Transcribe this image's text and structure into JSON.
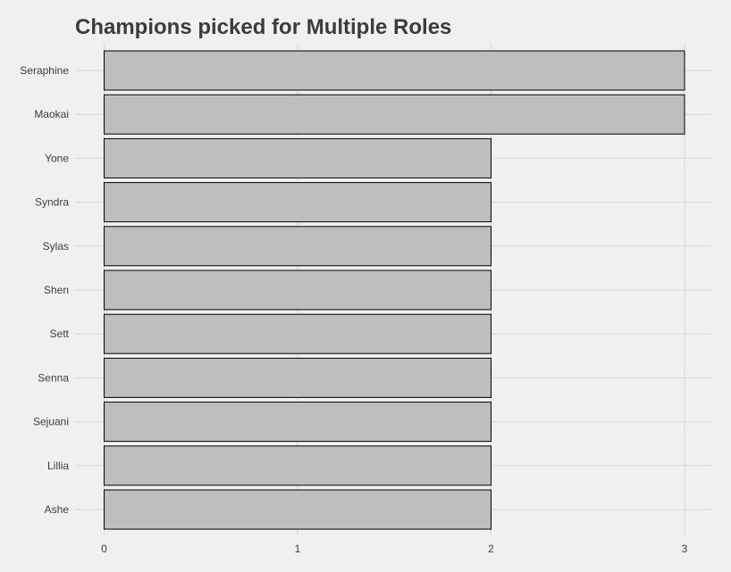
{
  "chart_data": {
    "type": "bar",
    "orientation": "horizontal",
    "title": "Champions picked for Multiple Roles",
    "xlabel": "",
    "ylabel": "",
    "categories": [
      "Seraphine",
      "Maokai",
      "Yone",
      "Syndra",
      "Sylas",
      "Shen",
      "Sett",
      "Senna",
      "Sejuani",
      "Lillia",
      "Ashe"
    ],
    "values": [
      3,
      3,
      2,
      2,
      2,
      2,
      2,
      2,
      2,
      2,
      2
    ],
    "xlim": [
      0,
      3
    ],
    "xticks": [
      0,
      1,
      2,
      3
    ],
    "grid": true,
    "legend": "none",
    "bar_color": "#bebebe",
    "bar_outline": "#000000",
    "background": "#f0f0f0"
  }
}
